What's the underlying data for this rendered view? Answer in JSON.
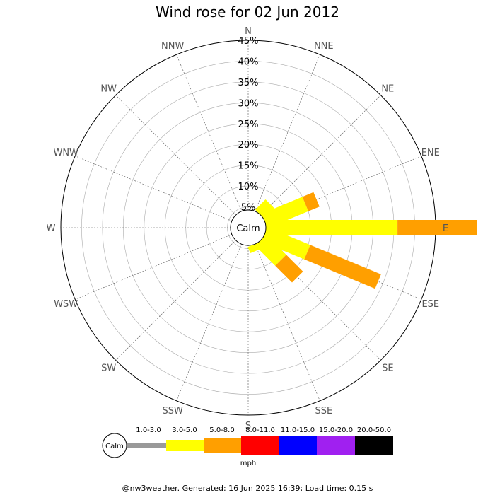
{
  "chart_data": {
    "type": "wind-rose",
    "title": "Wind rose for 02 Jun 2012",
    "directions": [
      "N",
      "NNE",
      "NE",
      "ENE",
      "E",
      "ESE",
      "SE",
      "SSE",
      "S",
      "SSW",
      "SW",
      "WSW",
      "W",
      "WNW",
      "NW",
      "NNW"
    ],
    "radial_ticks": [
      "5%",
      "10%",
      "15%",
      "20%",
      "25%",
      "30%",
      "35%",
      "40%",
      "45%"
    ],
    "radial_max": 45,
    "calm_label": "Calm",
    "speed_bins": [
      {
        "label": "1.0-3.0",
        "color": "#999999"
      },
      {
        "label": "3.0-5.0",
        "color": "#ffff00"
      },
      {
        "label": "5.0-8.0",
        "color": "#ff9f00"
      },
      {
        "label": "8.0-11.0",
        "color": "#ff0000"
      },
      {
        "label": "11.0-15.0",
        "color": "#0000ff"
      },
      {
        "label": "15.0-20.0",
        "color": "#a020f0"
      },
      {
        "label": "20.0-50.0",
        "color": "#000000"
      }
    ],
    "units": "mph",
    "series": [
      {
        "direction": "NE",
        "values": [
          0,
          3.5,
          0,
          0,
          0,
          0,
          0
        ]
      },
      {
        "direction": "ENE",
        "values": [
          0,
          10.6,
          2.9,
          0,
          0,
          0,
          0
        ]
      },
      {
        "direction": "E",
        "values": [
          0,
          31.6,
          19.0,
          0,
          0,
          0,
          0
        ]
      },
      {
        "direction": "ESE",
        "values": [
          0,
          11.1,
          18.4,
          0,
          0,
          0,
          0
        ]
      },
      {
        "direction": "SE",
        "values": [
          0,
          6.8,
          5.7,
          0,
          0,
          0,
          0
        ]
      },
      {
        "direction": "SSE",
        "values": [
          0,
          1.6,
          0,
          0,
          0,
          0,
          0
        ]
      }
    ]
  },
  "footer": "@nw3weather. Generated: 16 Jun 2025 16:39; Load time: 0.15 s"
}
